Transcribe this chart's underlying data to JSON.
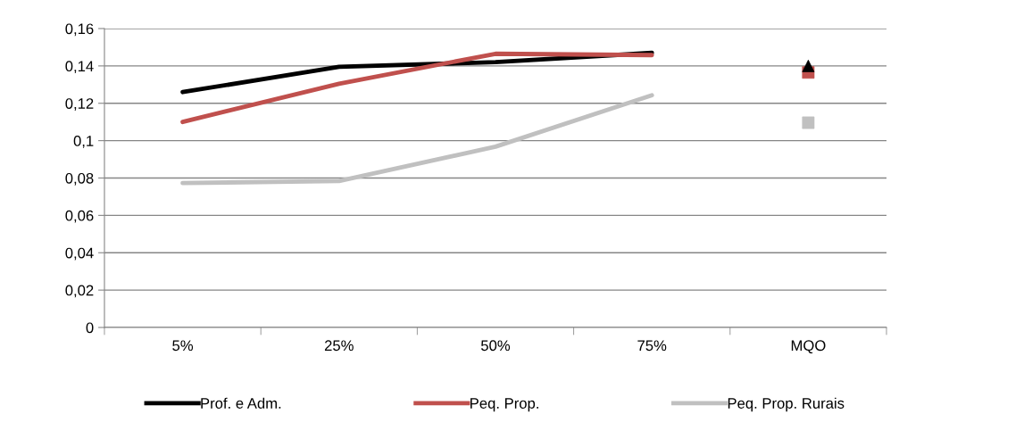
{
  "chart_data": {
    "type": "line",
    "categories": [
      "5%",
      "25%",
      "50%",
      "75%",
      "MQO"
    ],
    "series": [
      {
        "name": "Prof. e Adm.",
        "color": "#000000",
        "values": [
          0.126,
          0.1395,
          0.142,
          0.147,
          null
        ]
      },
      {
        "name": "Peq. Prop.",
        "color": "#c0504d",
        "values": [
          0.11,
          0.1305,
          0.1465,
          0.1458,
          null
        ]
      },
      {
        "name": "Peq. Prop. Rurais",
        "color": "#c0c0c0",
        "values": [
          0.0773,
          0.0784,
          0.0968,
          0.1243,
          null
        ]
      },
      {
        "type": "scatter",
        "color": "#000000",
        "marker": "triangle",
        "x": [
          "MQO"
        ],
        "values": [
          0.14
        ]
      },
      {
        "type": "scatter",
        "color": "#c0504d",
        "marker": "square",
        "x": [
          "MQO"
        ],
        "values": [
          0.1365
        ]
      },
      {
        "type": "scatter",
        "color": "#c0c0c0",
        "marker": "square",
        "x": [
          "MQO"
        ],
        "values": [
          0.1096
        ]
      }
    ],
    "ylim": [
      0,
      0.16
    ],
    "yticks": [
      0,
      {
        "value": 0.02,
        "label": "0,02"
      },
      {
        "value": 0.04,
        "label": "0,04"
      },
      {
        "value": 0.06,
        "label": "0,06"
      },
      {
        "value": 0.08,
        "label": "0,08"
      },
      {
        "value": 0.1,
        "label": "0,1"
      },
      {
        "value": 0.12,
        "label": "0,12"
      },
      {
        "value": 0.14,
        "label": "0,14"
      },
      {
        "value": 0.16,
        "label": "0,16"
      }
    ],
    "grid": "y",
    "legend": "bottom"
  }
}
